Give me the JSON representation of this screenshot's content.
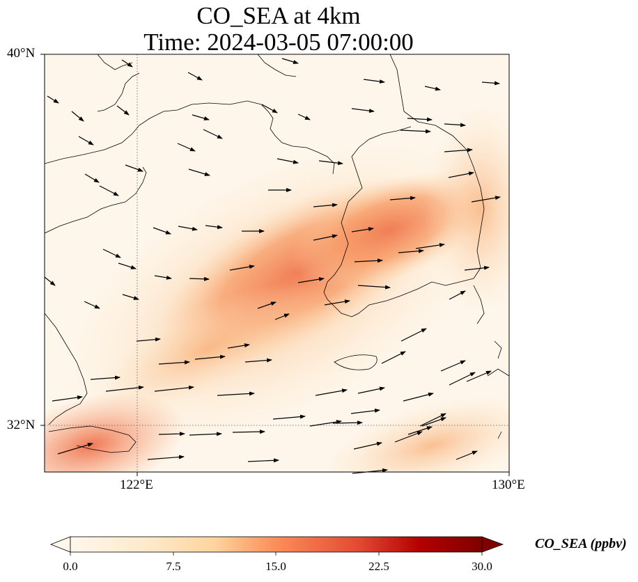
{
  "title": {
    "line1": "CO_SEA at 4km",
    "line2": "Time: 2024-03-05 07:00:00"
  },
  "map": {
    "lat_labels": [
      "40°N",
      "32°N"
    ],
    "lon_labels": [
      "122°E",
      "130°E"
    ],
    "extent": {
      "lon_min": 120.0,
      "lon_max": 130.0,
      "lat_min": 31.0,
      "lat_max": 40.0
    },
    "gridlines": {
      "lon": [
        122
      ],
      "lat": [
        32
      ],
      "style": "dotted"
    },
    "field_peak_color": "#f08050",
    "background_color": "#fef6ea",
    "vector_color": "#000000",
    "coastline_color": "#000000"
  },
  "colorbar": {
    "label": "CO_SEA (ppbv)",
    "ticks": [
      "0.0",
      "7.5",
      "15.0",
      "22.5",
      "30.0"
    ],
    "range": [
      0,
      30
    ],
    "colormap": "OrRd",
    "extend": "both",
    "colors": [
      "#fff7ec",
      "#fdd49e",
      "#fc8d59",
      "#d7301f",
      "#7f0000"
    ]
  }
}
